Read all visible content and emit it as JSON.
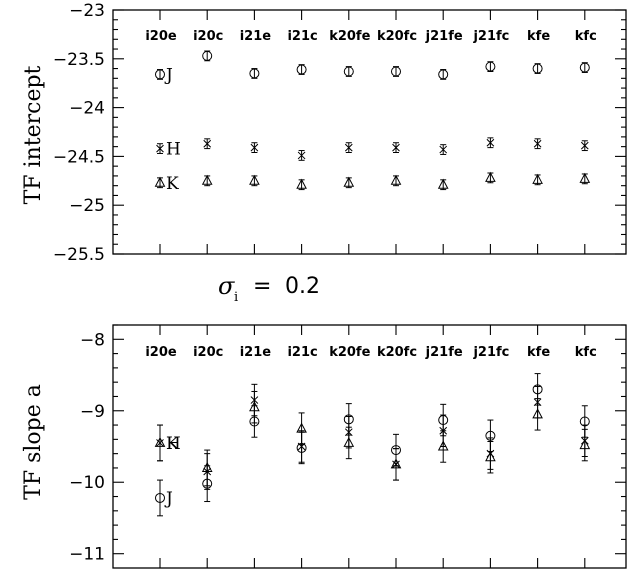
{
  "annotation": {
    "symbol": "σ",
    "subscript": "i",
    "equals": "=",
    "value": "0.2"
  },
  "chart_data": [
    {
      "type": "scatter",
      "ylabel": "TF intercept",
      "ylim": [
        -25.5,
        -23
      ],
      "yticks": [
        "-23",
        "-23.5",
        "-24",
        "-24.5",
        "-25",
        "-25.5"
      ],
      "categories": [
        "i20e",
        "i20c",
        "i21e",
        "i21c",
        "k20fe",
        "k20fc",
        "j21fe",
        "j21fc",
        "kfe",
        "kfc"
      ],
      "series": [
        {
          "name": "J",
          "marker": "circle",
          "values": [
            -23.66,
            -23.47,
            -23.65,
            -23.61,
            -23.63,
            -23.63,
            -23.66,
            -23.58,
            -23.6,
            -23.59
          ],
          "err": [
            0.05,
            0.05,
            0.05,
            0.05,
            0.05,
            0.05,
            0.05,
            0.05,
            0.05,
            0.05
          ]
        },
        {
          "name": "H",
          "marker": "cross",
          "values": [
            -24.42,
            -24.37,
            -24.41,
            -24.49,
            -24.41,
            -24.41,
            -24.43,
            -24.36,
            -24.37,
            -24.39
          ],
          "err": [
            0.05,
            0.05,
            0.05,
            0.05,
            0.05,
            0.05,
            0.05,
            0.05,
            0.05,
            0.05
          ]
        },
        {
          "name": "K",
          "marker": "triangle",
          "values": [
            -24.77,
            -24.75,
            -24.75,
            -24.79,
            -24.77,
            -24.75,
            -24.79,
            -24.72,
            -24.74,
            -24.73
          ],
          "err": [
            0.05,
            0.05,
            0.05,
            0.05,
            0.05,
            0.05,
            0.05,
            0.05,
            0.05,
            0.05
          ]
        }
      ]
    },
    {
      "type": "scatter",
      "ylabel": "TF slope a",
      "ylim": [
        -11.2,
        -7.8
      ],
      "yticks": [
        "-8",
        "-9",
        "-10",
        "-11"
      ],
      "categories": [
        "i20e",
        "i20c",
        "i21e",
        "i21c",
        "k20fe",
        "k20fc",
        "j21fe",
        "j21fc",
        "kfe",
        "kfc"
      ],
      "series": [
        {
          "name": "J",
          "marker": "circle",
          "values": [
            -10.22,
            -10.02,
            -9.15,
            -9.52,
            -9.12,
            -9.55,
            -9.13,
            -9.35,
            -8.7,
            -9.15
          ],
          "err": [
            0.25,
            0.25,
            0.22,
            0.22,
            0.22,
            0.22,
            0.22,
            0.22,
            0.22,
            0.22
          ]
        },
        {
          "name": "H",
          "marker": "cross",
          "values": [
            -9.45,
            -9.85,
            -8.85,
            -9.5,
            -9.3,
            -9.75,
            -9.28,
            -9.6,
            -8.88,
            -9.42
          ],
          "err": [
            0.25,
            0.25,
            0.22,
            0.22,
            0.22,
            0.22,
            0.22,
            0.22,
            0.22,
            0.22
          ]
        },
        {
          "name": "K",
          "marker": "triangle",
          "values": [
            -9.45,
            -9.8,
            -8.95,
            -9.25,
            -9.45,
            -9.75,
            -9.5,
            -9.65,
            -9.05,
            -9.48
          ],
          "err": [
            0.25,
            0.25,
            0.22,
            0.22,
            0.22,
            0.22,
            0.22,
            0.22,
            0.22,
            0.22
          ]
        }
      ]
    }
  ]
}
